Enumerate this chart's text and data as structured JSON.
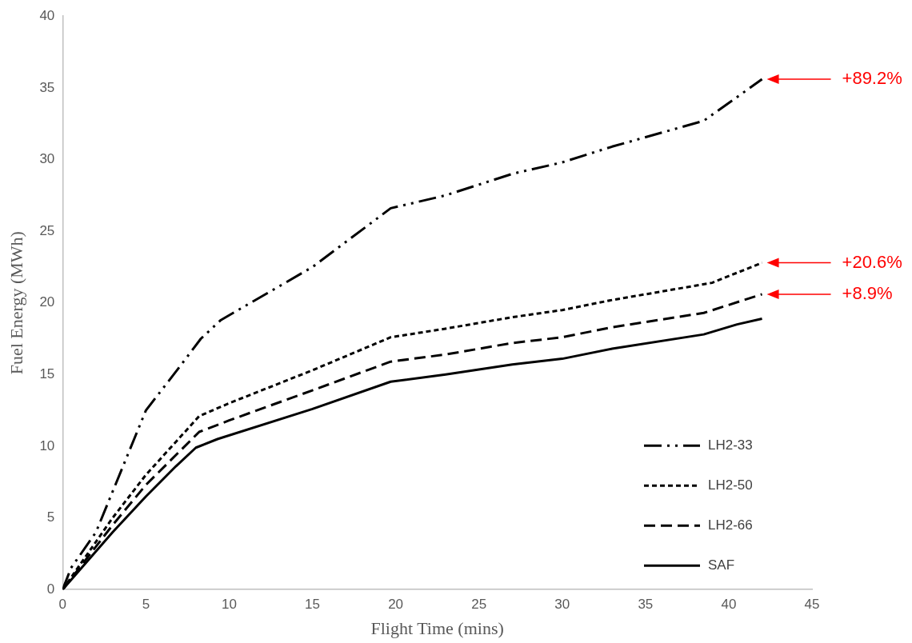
{
  "chart_data": {
    "type": "line",
    "xlabel": "Flight Time (mins)",
    "ylabel": "Fuel Energy (MWh)",
    "xlim": [
      0,
      45
    ],
    "xticks": [
      0,
      5,
      10,
      15,
      20,
      25,
      30,
      35,
      40,
      45
    ],
    "ylim": [
      0,
      40
    ],
    "yticks": [
      0,
      5,
      10,
      15,
      20,
      25,
      30,
      35,
      40
    ],
    "grid": false,
    "legend": "bottom right",
    "marker": "none",
    "series": [
      {
        "name": "LH2-33",
        "color": "#000000",
        "line_style": "dashdot",
        "x": [
          0,
          0.5,
          2,
          5,
          7,
          8.3,
          9.5,
          15,
          19.7,
          23,
          27,
          30,
          33,
          38.5,
          42
        ],
        "values": [
          0,
          1.5,
          4,
          12.5,
          15.5,
          17.5,
          18.8,
          22.5,
          26.6,
          27.5,
          29,
          29.8,
          30.9,
          32.7,
          35.6
        ]
      },
      {
        "name": "LH2-50",
        "color": "#000000",
        "line_style": "dotted",
        "x": [
          0,
          3,
          5,
          8.2,
          10,
          15,
          19.7,
          23,
          27,
          30,
          33,
          39,
          42
        ],
        "values": [
          0,
          5,
          8,
          12.1,
          13,
          15.3,
          17.6,
          18.2,
          19,
          19.5,
          20.2,
          21.4,
          22.8
        ]
      },
      {
        "name": "LH2-66",
        "color": "#000000",
        "line_style": "dashed",
        "x": [
          0,
          3,
          5,
          8.2,
          10,
          15,
          19.7,
          23,
          27,
          30,
          33,
          38.5,
          42
        ],
        "values": [
          0,
          4.5,
          7.3,
          11,
          11.8,
          13.9,
          15.9,
          16.4,
          17.2,
          17.6,
          18.3,
          19.3,
          20.6
        ]
      },
      {
        "name": "SAF",
        "color": "#000000",
        "line_style": "solid",
        "x": [
          0,
          3,
          5,
          6.8,
          8,
          9.3,
          15,
          19.7,
          23,
          27,
          30,
          33,
          38.5,
          40.5,
          42
        ],
        "values": [
          0,
          4,
          6.5,
          8.6,
          9.9,
          10.5,
          12.6,
          14.5,
          15,
          15.7,
          16.1,
          16.8,
          17.8,
          18.5,
          18.9
        ]
      }
    ],
    "annotations": [
      "+89.2%",
      "+20.6%",
      "+8.9%"
    ]
  }
}
